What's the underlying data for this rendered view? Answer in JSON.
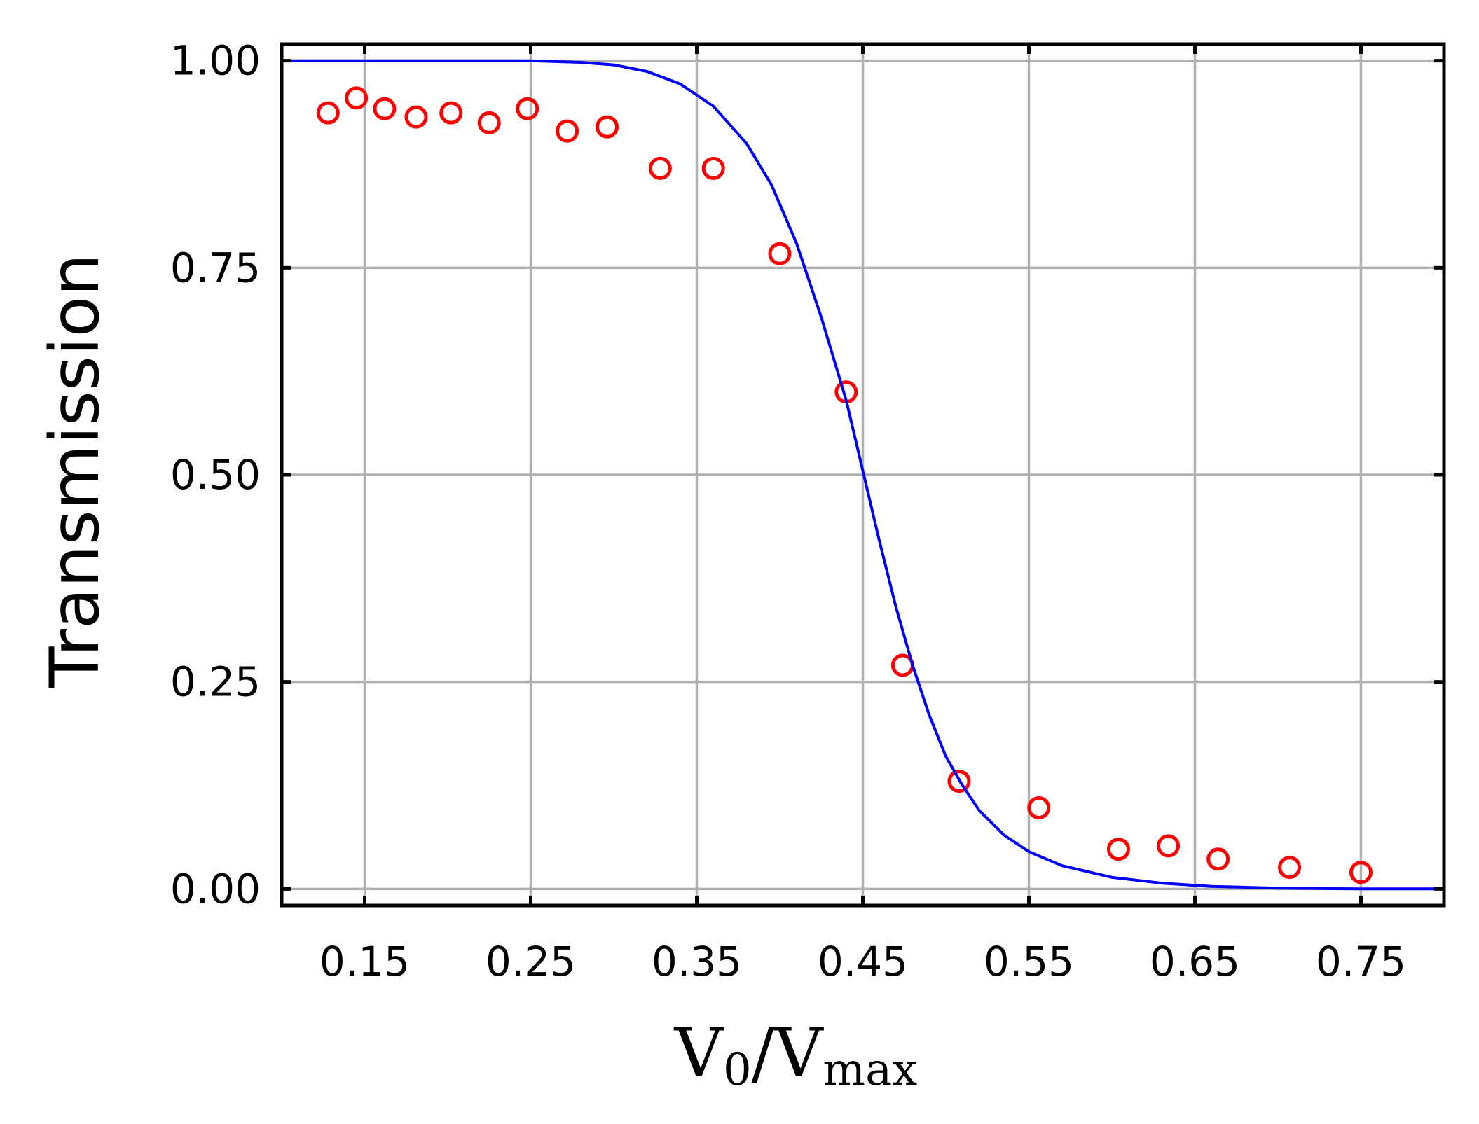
{
  "chart_data": {
    "type": "scatter",
    "xlabel": "V0/Vmax",
    "xlabel_parts": {
      "base1": "V",
      "sub1": "0",
      "slash": "/",
      "base2": "V",
      "sub2": "max"
    },
    "ylabel": "Transmission",
    "xlim": [
      0.1,
      0.8
    ],
    "ylim": [
      -0.02,
      1.02
    ],
    "xticks": [
      0.15,
      0.25,
      0.35,
      0.45,
      0.55,
      0.65,
      0.75
    ],
    "xtick_labels": [
      "0.15",
      "0.25",
      "0.35",
      "0.45",
      "0.55",
      "0.65",
      "0.75"
    ],
    "yticks": [
      0.0,
      0.25,
      0.5,
      0.75,
      1.0
    ],
    "ytick_labels": [
      "0.00",
      "0.25",
      "0.50",
      "0.75",
      "1.00"
    ],
    "grid": true,
    "series": [
      {
        "kind": "scatter",
        "marker": "open-circle",
        "color": "#ff0000",
        "points": [
          [
            0.128,
            0.937
          ],
          [
            0.145,
            0.955
          ],
          [
            0.162,
            0.942
          ],
          [
            0.181,
            0.932
          ],
          [
            0.202,
            0.937
          ],
          [
            0.225,
            0.925
          ],
          [
            0.248,
            0.942
          ],
          [
            0.272,
            0.915
          ],
          [
            0.296,
            0.92
          ],
          [
            0.328,
            0.87
          ],
          [
            0.36,
            0.87
          ],
          [
            0.4,
            0.767
          ],
          [
            0.44,
            0.6
          ],
          [
            0.474,
            0.27
          ],
          [
            0.508,
            0.13
          ],
          [
            0.556,
            0.098
          ],
          [
            0.604,
            0.048
          ],
          [
            0.634,
            0.052
          ],
          [
            0.664,
            0.036
          ],
          [
            0.707,
            0.026
          ],
          [
            0.75,
            0.02
          ]
        ]
      },
      {
        "kind": "line",
        "color": "#0000ff",
        "points": [
          [
            0.1,
            1.0
          ],
          [
            0.15,
            1.0
          ],
          [
            0.2,
            1.0
          ],
          [
            0.25,
            1.0
          ],
          [
            0.28,
            0.998
          ],
          [
            0.3,
            0.995
          ],
          [
            0.32,
            0.987
          ],
          [
            0.34,
            0.972
          ],
          [
            0.36,
            0.945
          ],
          [
            0.38,
            0.9
          ],
          [
            0.395,
            0.85
          ],
          [
            0.41,
            0.78
          ],
          [
            0.425,
            0.69
          ],
          [
            0.44,
            0.59
          ],
          [
            0.45,
            0.505
          ],
          [
            0.46,
            0.42
          ],
          [
            0.47,
            0.34
          ],
          [
            0.48,
            0.27
          ],
          [
            0.49,
            0.21
          ],
          [
            0.5,
            0.16
          ],
          [
            0.51,
            0.125
          ],
          [
            0.52,
            0.095
          ],
          [
            0.535,
            0.065
          ],
          [
            0.55,
            0.045
          ],
          [
            0.57,
            0.028
          ],
          [
            0.6,
            0.014
          ],
          [
            0.63,
            0.007
          ],
          [
            0.66,
            0.003
          ],
          [
            0.7,
            0.001
          ],
          [
            0.75,
            0.0
          ],
          [
            0.8,
            0.0
          ]
        ]
      }
    ]
  }
}
